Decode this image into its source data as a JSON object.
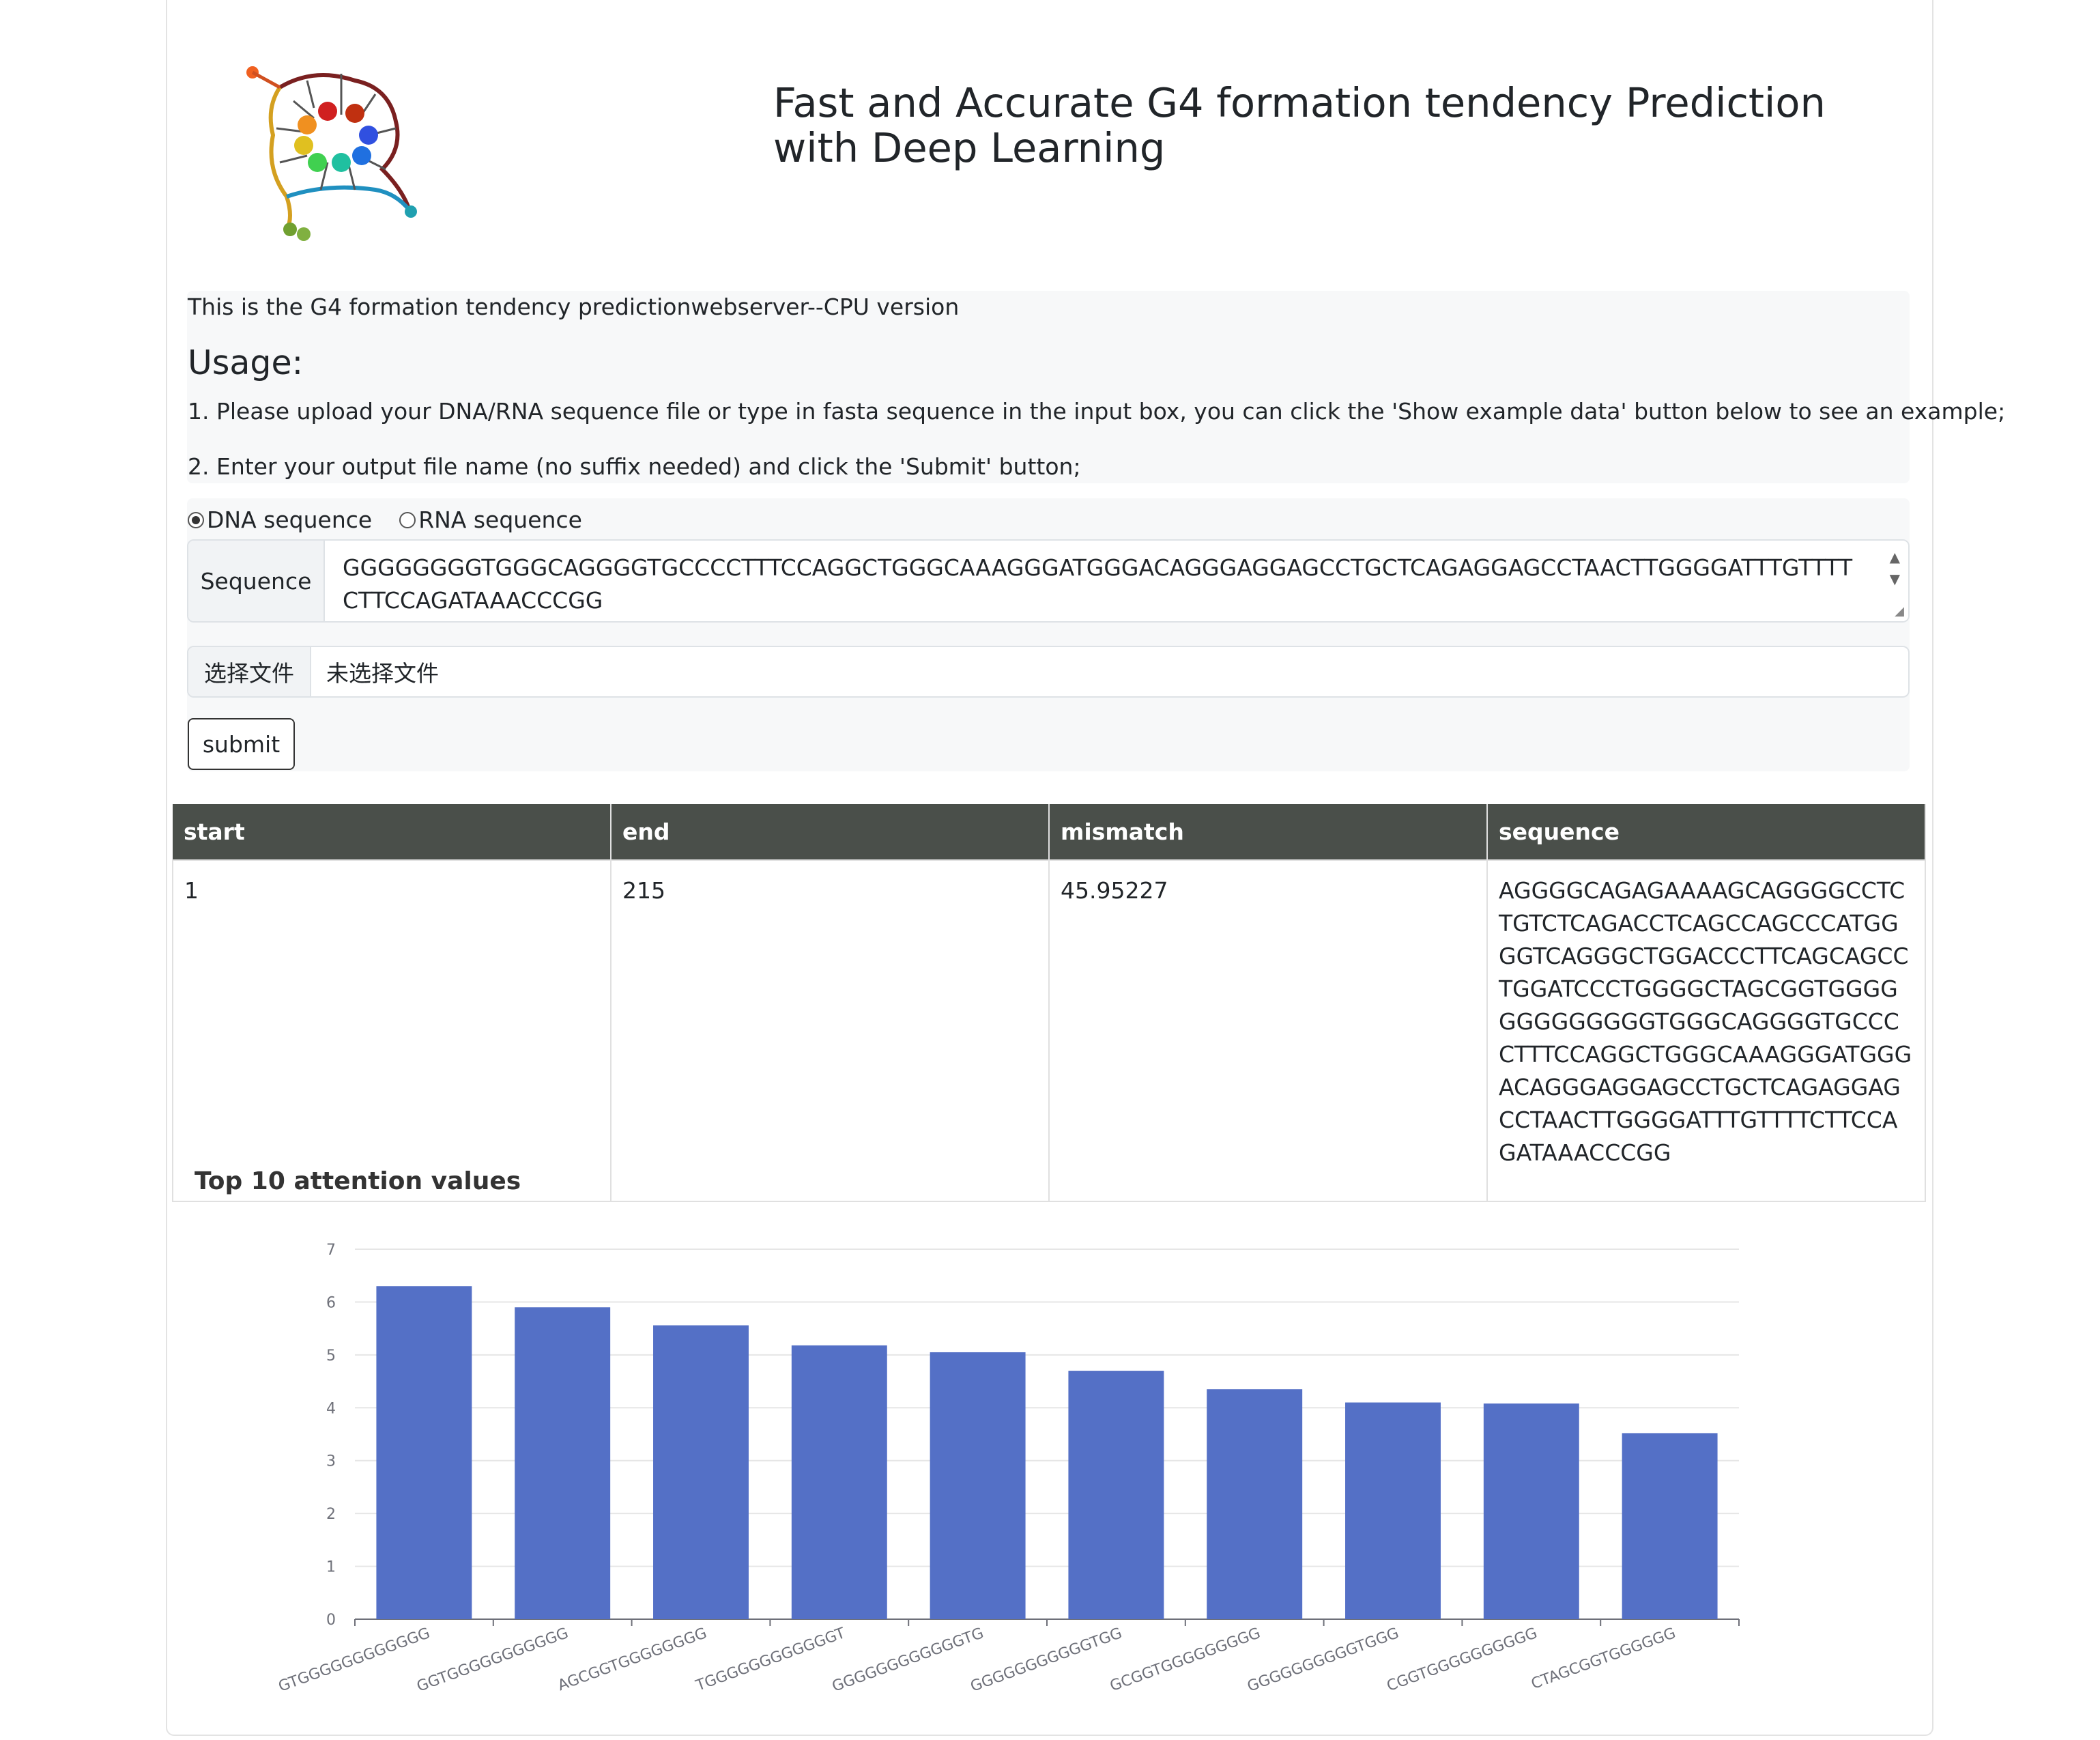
{
  "header": {
    "title": "Fast and Accurate G4 formation tendency Prediction with Deep Learning"
  },
  "info": {
    "intro": "This is the G4 formation tendency predictionwebserver--CPU version",
    "usage_title": "Usage:",
    "step1": "1. Please upload your DNA/RNA sequence file or type in fasta sequence in the input box, you can click the 'Show example data' button below to see an example;",
    "step2": "2. Enter your output file name (no suffix needed) and click the 'Submit' button;"
  },
  "form": {
    "radio_dna": "DNA sequence",
    "radio_rna": "RNA sequence",
    "selected": "DNA",
    "sequence_label": "Sequence",
    "sequence_value": "GGGGGGGGTGGGCAGGGGTGCCCCTTTCCAGGCTGGGCAAAGGGATGGGACAGGGAGGAGCCTGCTCAGAGGAGCCTAACTTGGGGATTTGTTTTCTTCCAGATAAACCCGG",
    "file_button": "选择文件",
    "file_status": "未选择文件",
    "submit_label": "submit"
  },
  "table": {
    "headers": [
      "start",
      "end",
      "mismatch",
      "sequence"
    ],
    "rows": [
      {
        "start": "1",
        "end": "215",
        "mismatch": "45.95227",
        "sequence": "AGGGGCAGAGAAAAGCAGGGGCCTCTGTCTCAGACCTCAGCCAGCCCATGGGGTCAGGGCTGGACCCTTCAGCAGCCTGGATCCCTGGGGCTAGCGGTGGGGGGGGGGGGGTGGGCAGGGGTGCCCCTTTCCAGGCTGGGCAAAGGGATGGGACAGGGAGGAGCCTGCTCAGAGGAGCCTAACTTGGGGATTTGTTTTCTTCCAGATAAACCCGG"
      }
    ]
  },
  "chart_data": {
    "type": "bar",
    "title": "Top 10 attention values",
    "categories": [
      "GTGGGGGGGGGGGG",
      "GGTGGGGGGGGGGG",
      "AGCGGTGGGGGGGG",
      "TGGGGGGGGGGGGT",
      "GGGGGGGGGGGGTG",
      "GGGGGGGGGGGTGG",
      "GCGGTGGGGGGGGG",
      "GGGGGGGGGGTGGG",
      "CGGTGGGGGGGGGG",
      "CTAGCGGTGGGGGG"
    ],
    "values": [
      6.3,
      5.9,
      5.56,
      5.18,
      5.05,
      4.7,
      4.35,
      4.1,
      4.08,
      3.52
    ],
    "ylim": [
      0,
      7
    ],
    "yticks": [
      0,
      1,
      2,
      3,
      4,
      5,
      6,
      7
    ],
    "bar_color": "#5470c6",
    "grid": true
  }
}
